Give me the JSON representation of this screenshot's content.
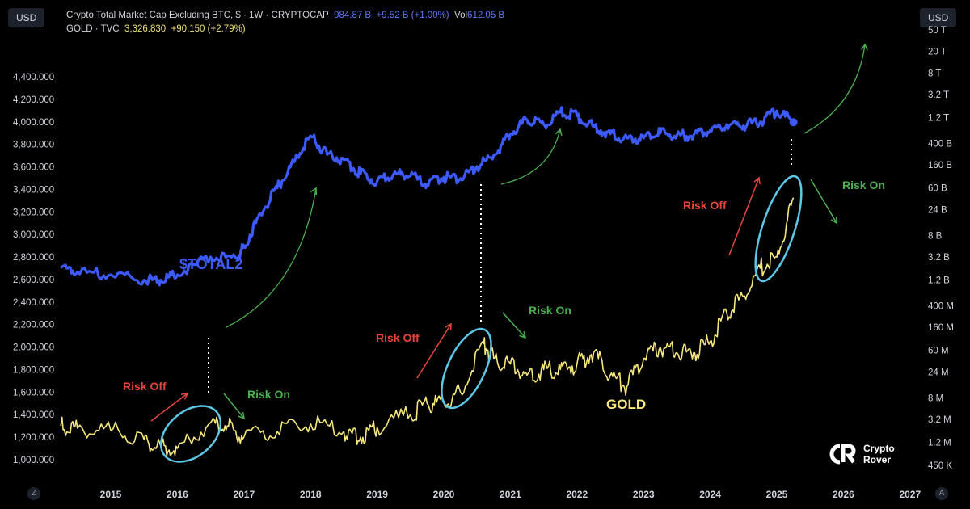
{
  "header": {
    "currency_left": "USD",
    "currency_right": "USD",
    "series1": {
      "name": "Crypto Total Market Cap Excluding BTC, $ · 1W · CRYPTOCAP",
      "value": "984.87 B",
      "change": "+9.52 B (+1.00%)",
      "vol_label": "Vol",
      "vol": "612.05 B"
    },
    "series2": {
      "name": "GOLD · TVC",
      "value": "3,326.830",
      "change": "+90.150 (+2.79%)"
    }
  },
  "footer": {
    "left_button": "Z",
    "right_button": "A"
  },
  "logo": {
    "line1": "Crypto",
    "line2": "Rover"
  },
  "colors": {
    "total2": "#3d5afe",
    "gold": "#f6e77a",
    "arrow_red": "#e8463d",
    "arrow_green": "#4caf50",
    "ellipse": "#5bc8e8",
    "risk_off_text": "#e8463d",
    "risk_on_text": "#4caf50"
  },
  "chart_data": {
    "type": "line",
    "title": "",
    "x_ticks": [
      "2015",
      "2016",
      "2017",
      "2018",
      "2019",
      "2020",
      "2021",
      "2022",
      "2023",
      "2024",
      "2025",
      "2026",
      "2027"
    ],
    "y_left_ticks": [
      "1,000.000",
      "1,200.000",
      "1,400.000",
      "1,600.000",
      "1,800.000",
      "2,000.000",
      "2,200.000",
      "2,400.000",
      "2,600.000",
      "2,800.000",
      "3,000.000",
      "3,200.000",
      "3,400.000",
      "3,600.000",
      "3,800.000",
      "4,000.000",
      "4,200.000",
      "4,400.000"
    ],
    "y_right_ticks": [
      "450 K",
      "1.2 M",
      "3.2 M",
      "8 M",
      "24 M",
      "60 M",
      "160 M",
      "400 M",
      "1.2 B",
      "3.2 B",
      "8 B",
      "24 B",
      "60 B",
      "160 B",
      "400 B",
      "1.2 T",
      "3.2 T",
      "8 T",
      "20 T",
      "50 T"
    ],
    "y_left_range": [
      1000,
      4400
    ],
    "y_right_scale": "log",
    "series": [
      {
        "name": "$TOTAL2",
        "axis": "right",
        "x": [
          2014.25,
          2014.5,
          2015.0,
          2015.5,
          2015.75,
          2016.0,
          2016.5,
          2016.9,
          2017.0,
          2017.25,
          2017.5,
          2017.75,
          2018.0,
          2018.25,
          2018.5,
          2018.75,
          2019.0,
          2019.25,
          2019.5,
          2019.75,
          2020.0,
          2020.25,
          2020.5,
          2020.75,
          2021.0,
          2021.25,
          2021.5,
          2021.75,
          2022.0,
          2022.25,
          2022.5,
          2022.75,
          2023.0,
          2023.25,
          2023.5,
          2023.75,
          2024.0,
          2024.25,
          2024.5,
          2024.75,
          2025.0,
          2025.25
        ],
        "values_text": [
          "2 B",
          "1.7 B",
          "1.5 B",
          "1.2 B",
          "1.2 B",
          "1.5 B",
          "3.2 B",
          "3 B",
          "5 B",
          "20 B",
          "60 B",
          "180 B",
          "550 B",
          "250 B",
          "200 B",
          "110 B",
          "80 B",
          "110 B",
          "100 B",
          "70 B",
          "95 B",
          "90 B",
          "150 B",
          "240 B",
          "600 B",
          "1.1 T",
          "900 B",
          "1.5 T",
          "1.3 T",
          "800 B",
          "600 B",
          "500 B",
          "500 B",
          "620 B",
          "560 B",
          "560 B",
          "700 B",
          "900 B",
          "850 B",
          "1.0 T",
          "1.6 T",
          "985 B"
        ]
      },
      {
        "name": "GOLD",
        "axis": "left",
        "x": [
          2014.25,
          2014.5,
          2015.0,
          2015.5,
          2015.75,
          2016.0,
          2016.5,
          2016.75,
          2017.0,
          2017.5,
          2018.0,
          2018.5,
          2018.75,
          2019.0,
          2019.5,
          2019.75,
          2020.0,
          2020.25,
          2020.6,
          2020.75,
          2021.0,
          2021.25,
          2021.5,
          2021.75,
          2022.0,
          2022.25,
          2022.5,
          2022.75,
          2023.0,
          2023.25,
          2023.5,
          2023.75,
          2024.0,
          2024.25,
          2024.5,
          2024.75,
          2025.0,
          2025.25
        ],
        "values": [
          1300,
          1280,
          1260,
          1180,
          1120,
          1100,
          1330,
          1300,
          1200,
          1250,
          1320,
          1250,
          1200,
          1290,
          1400,
          1500,
          1520,
          1600,
          2030,
          1900,
          1850,
          1750,
          1800,
          1800,
          1850,
          1950,
          1750,
          1650,
          1900,
          2000,
          1950,
          1950,
          2050,
          2300,
          2450,
          2700,
          2800,
          3327
        ]
      }
    ],
    "annotations": {
      "series_labels": [
        "$TOTAL2",
        "GOLD"
      ],
      "risk_off": [
        "Risk Off",
        "Risk Off",
        "Risk Off"
      ],
      "risk_on": [
        "Risk On",
        "Risk On",
        "Risk On"
      ]
    },
    "grid": false,
    "legend": "top-left"
  }
}
